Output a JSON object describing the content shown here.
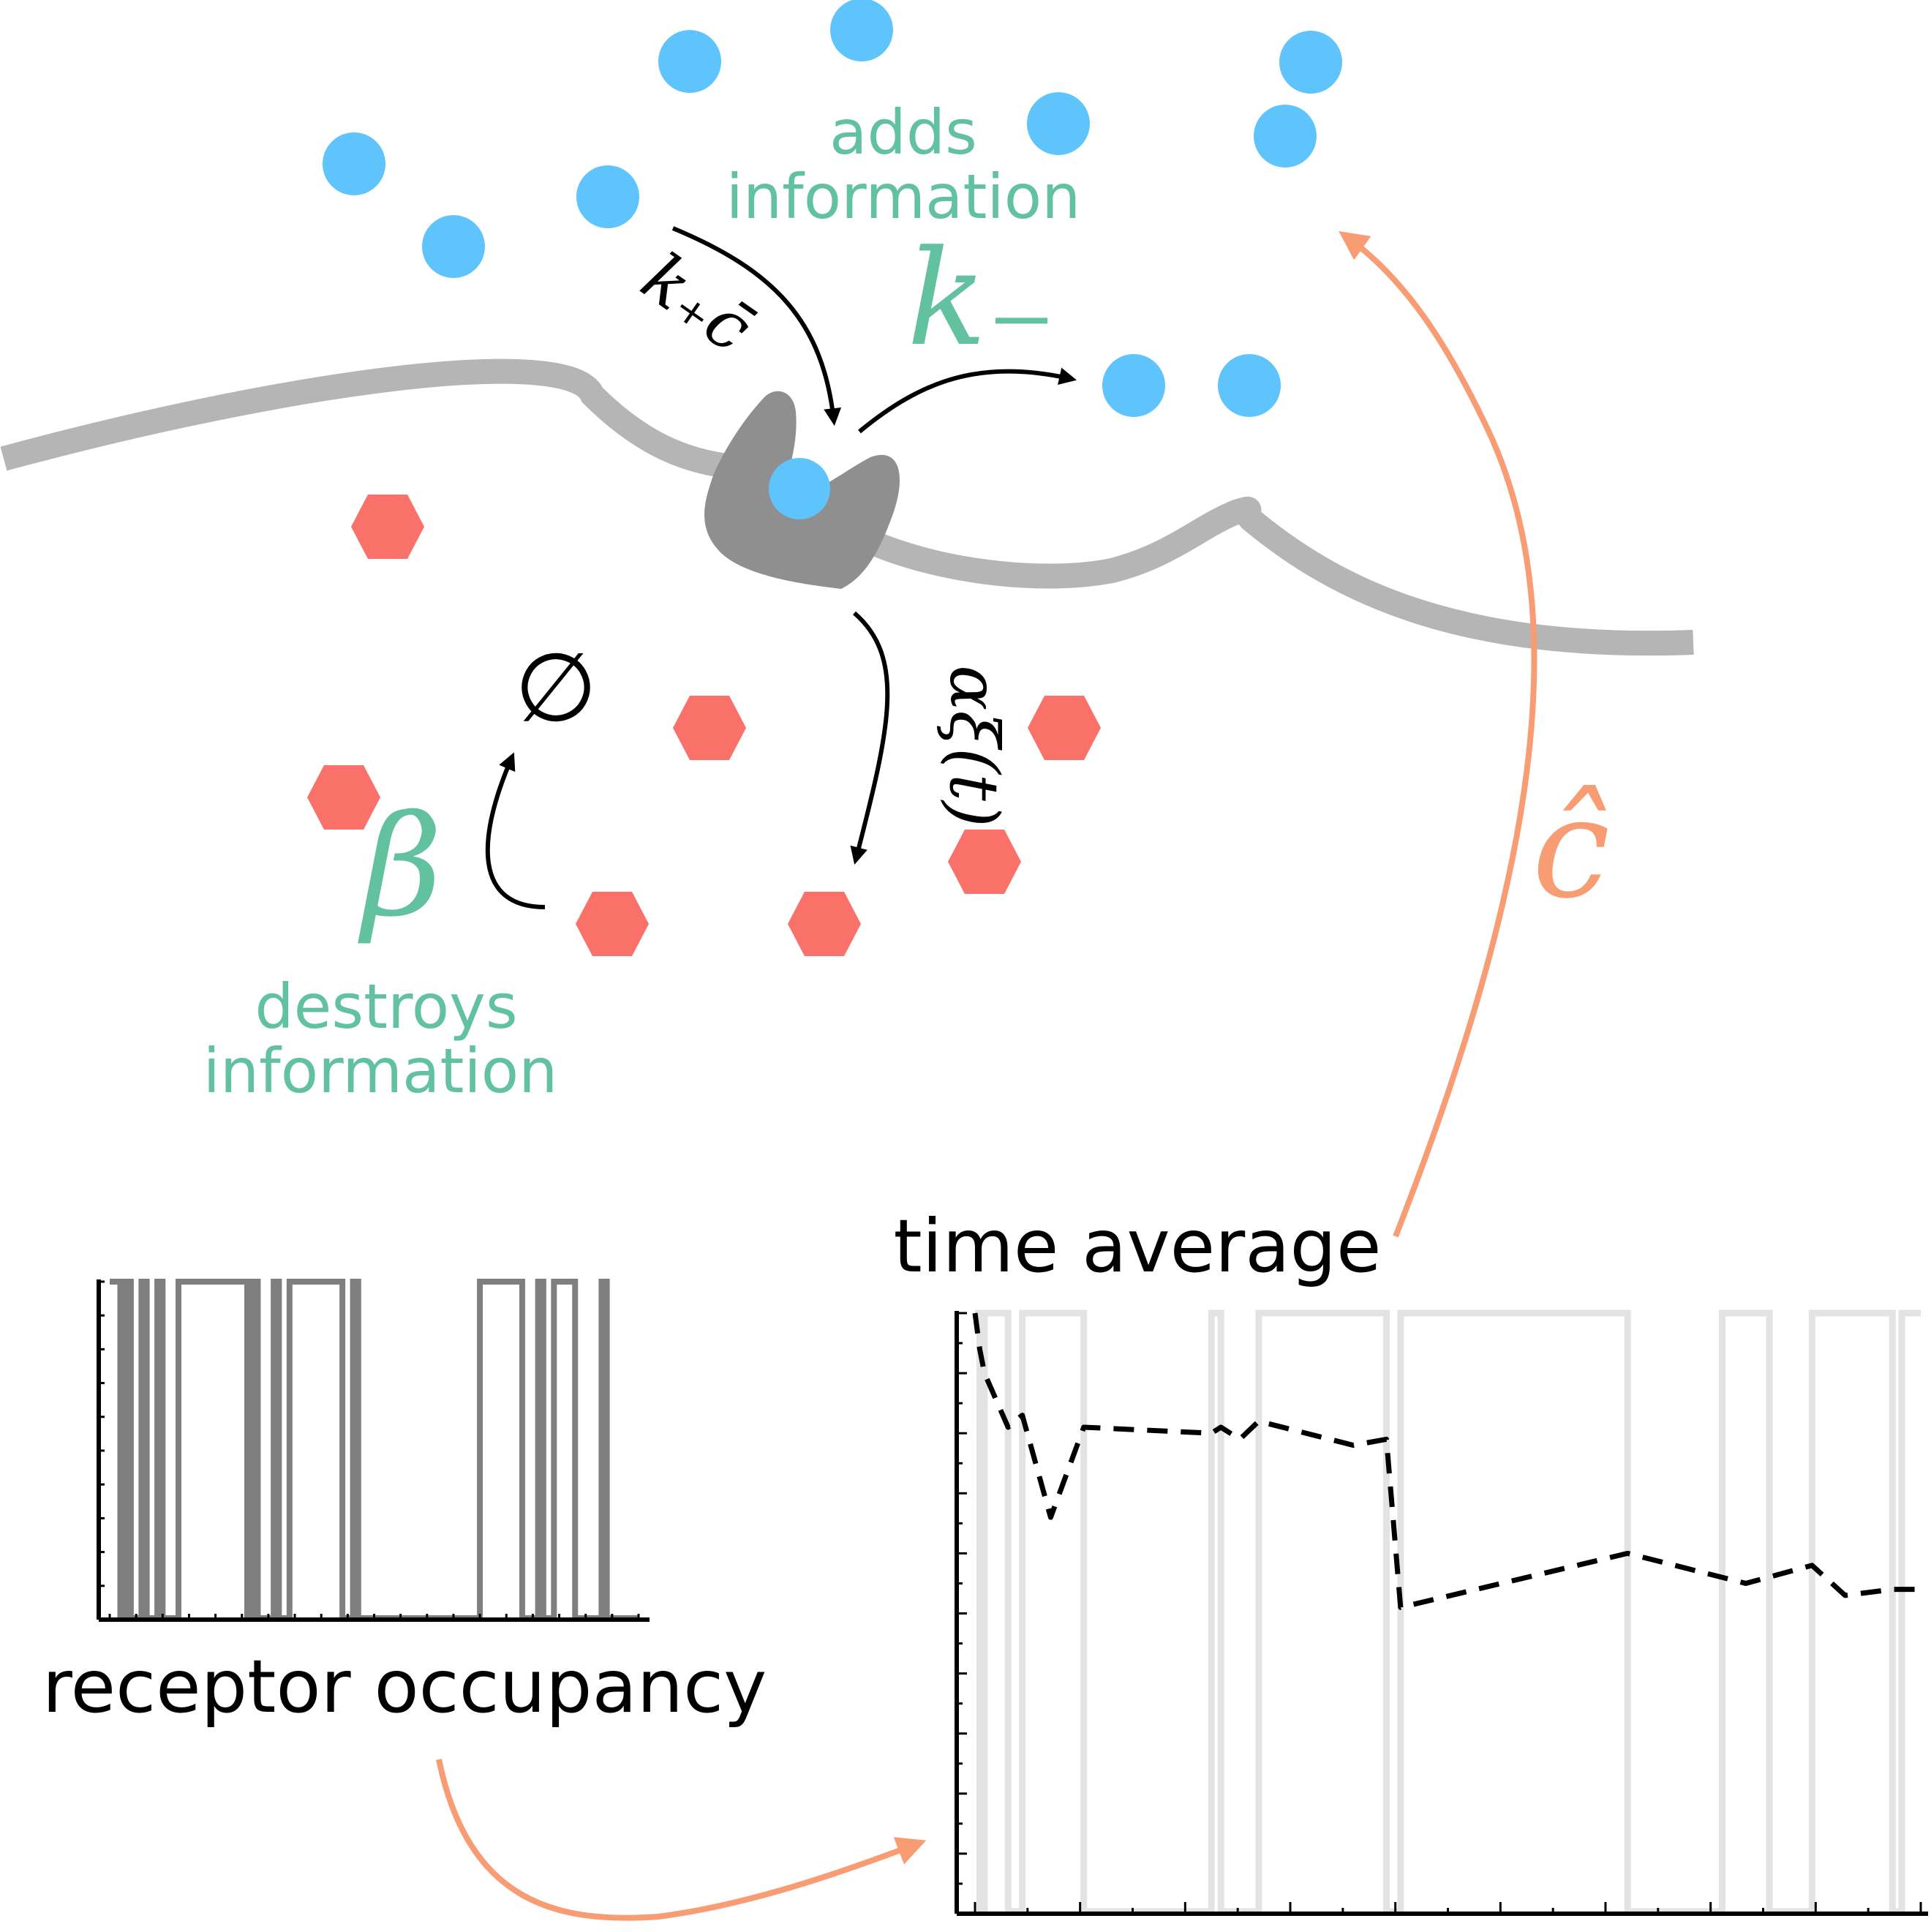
{
  "labels": {
    "adds_line1": "adds",
    "adds_line2": "information",
    "destroys_line1": "destroys",
    "destroys_line2": "information",
    "receptor_occupancy": "receptor occupancy",
    "time_average": "time average"
  },
  "math": {
    "binding_rate": "k₊c̄",
    "unbinding_rate": "k₋",
    "production_noise": "αξ(t)",
    "decay_rate": "β",
    "empty_set": "∅",
    "estimate": "ĉ"
  },
  "colors": {
    "ligand": "#5ec4fb",
    "molecule": "#f97168",
    "membrane": "#b5b5b5",
    "receptor": "#8f8f8f",
    "annotation_green": "#62c2a0",
    "estimate_orange": "#f89c74",
    "occupancy_trace": "#7f7f7f",
    "faded_trace": "#e3e3e3",
    "axis": "#000000"
  },
  "chart_data": [
    {
      "type": "line",
      "title": "",
      "caption": "receptor occupancy",
      "xlabel": "",
      "ylabel": "",
      "xlim": [
        0,
        100
      ],
      "ylim": [
        0,
        1
      ],
      "series": [
        {
          "style": "step",
          "transitions": [
            2,
            3,
            4,
            6,
            7,
            9,
            10,
            13,
            26,
            27,
            28,
            31,
            32,
            34,
            44,
            46,
            47,
            70,
            78,
            81,
            82,
            84,
            88,
            93,
            94
          ],
          "initial": 1
        }
      ]
    },
    {
      "type": "line",
      "title": "",
      "caption": "time average",
      "xlabel": "",
      "ylabel": "",
      "xlim": [
        0,
        100
      ],
      "ylim": [
        0,
        1
      ],
      "series": [
        {
          "style": "step-faded",
          "transitions": [
            0.5,
            1,
            3.5,
            5,
            11.5,
            25,
            26,
            30,
            43.5,
            45,
            69,
            79,
            84,
            88.5,
            97,
            98
          ],
          "initial": 1
        },
        {
          "style": "dashed",
          "x": [
            0,
            0.5,
            1,
            3.5,
            5,
            8,
            11.5,
            25,
            26,
            28,
            30,
            40,
            43.5,
            45,
            69,
            81.5,
            88.5,
            92,
            97,
            100
          ],
          "y": [
            1.0,
            0.94,
            0.9,
            0.81,
            0.83,
            0.66,
            0.81,
            0.8,
            0.81,
            0.79,
            0.82,
            0.78,
            0.79,
            0.51,
            0.6,
            0.55,
            0.58,
            0.53,
            0.54,
            0.54
          ]
        }
      ]
    }
  ]
}
